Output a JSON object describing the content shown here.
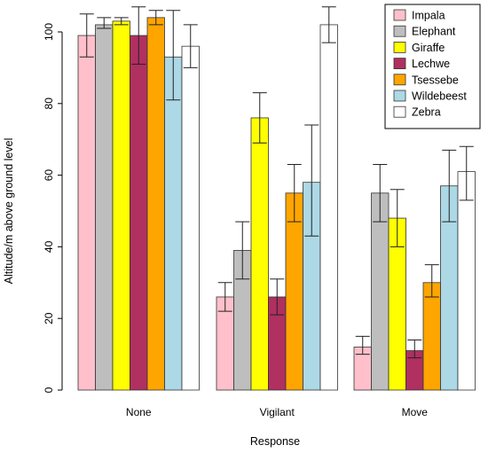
{
  "chart_data": {
    "type": "bar",
    "xlabel": "Response",
    "ylabel": "Altitude/m above ground level",
    "ylim": [
      0,
      105
    ],
    "yticks": [
      0,
      20,
      40,
      60,
      80,
      100
    ],
    "categories": [
      "None",
      "Vigilant",
      "Move"
    ],
    "legend_position": "top-right",
    "error_bars": true,
    "series": [
      {
        "name": "Impala",
        "color": "#FFC0CB",
        "values": [
          99,
          26,
          12
        ],
        "err_low": [
          93,
          22,
          10
        ],
        "err_high": [
          105,
          30,
          15
        ]
      },
      {
        "name": "Elephant",
        "color": "#BEBEBE",
        "values": [
          102,
          39,
          55
        ],
        "err_low": [
          101,
          31,
          47
        ],
        "err_high": [
          104,
          47,
          63
        ]
      },
      {
        "name": "Giraffe",
        "color": "#FFFF00",
        "values": [
          103,
          76,
          48
        ],
        "err_low": [
          102,
          69,
          40
        ],
        "err_high": [
          104,
          83,
          56
        ]
      },
      {
        "name": "Lechwe",
        "color": "#B03060",
        "values": [
          99,
          26,
          11
        ],
        "err_low": [
          91,
          21,
          9
        ],
        "err_high": [
          107,
          31,
          14
        ]
      },
      {
        "name": "Tsessebe",
        "color": "#FFA500",
        "values": [
          104,
          55,
          30
        ],
        "err_low": [
          102,
          47,
          26
        ],
        "err_high": [
          106,
          63,
          35
        ]
      },
      {
        "name": "Wildebeest",
        "color": "#ADD8E6",
        "values": [
          93,
          58,
          57
        ],
        "err_low": [
          81,
          43,
          47
        ],
        "err_high": [
          106,
          74,
          67
        ]
      },
      {
        "name": "Zebra",
        "color": "#FFFFFF",
        "values": [
          96,
          102,
          61
        ],
        "err_low": [
          90,
          97,
          53
        ],
        "err_high": [
          102,
          107,
          68
        ]
      }
    ]
  }
}
